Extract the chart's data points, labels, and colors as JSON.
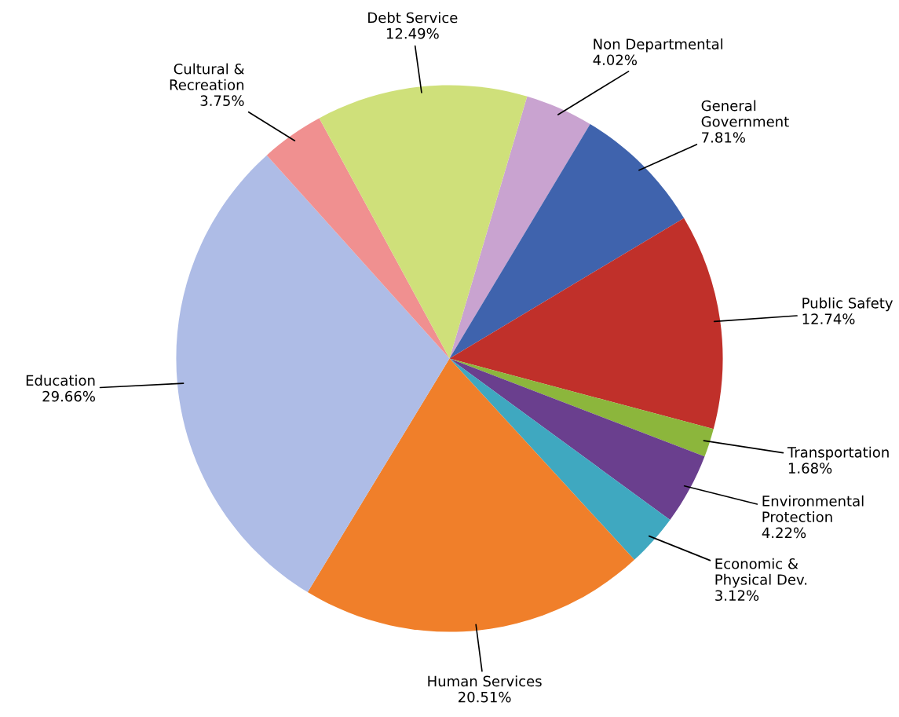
{
  "chart_data": {
    "type": "pie",
    "categories": [
      "Non Departmental",
      "General Government",
      "Public Safety",
      "Transportation",
      "Environmental Protection",
      "Economic & Physical Dev.",
      "Human Services",
      "Education",
      "Cultural & Recreation",
      "Debt Service"
    ],
    "values": [
      4.02,
      7.81,
      12.74,
      1.68,
      4.22,
      3.12,
      20.51,
      29.66,
      3.75,
      12.49
    ],
    "value_labels": [
      "4.02%",
      "7.81%",
      "12.74%",
      "1.68%",
      "4.22%",
      "3.12%",
      "20.51%",
      "29.66%",
      "3.75%",
      "12.49%"
    ],
    "colors": [
      "#c9a3d0",
      "#3f63ad",
      "#c0302a",
      "#8cb63c",
      "#6a3f8e",
      "#3fa8c0",
      "#f07f2a",
      "#aebce6",
      "#f09090",
      "#cfe07a"
    ],
    "legend": false
  }
}
